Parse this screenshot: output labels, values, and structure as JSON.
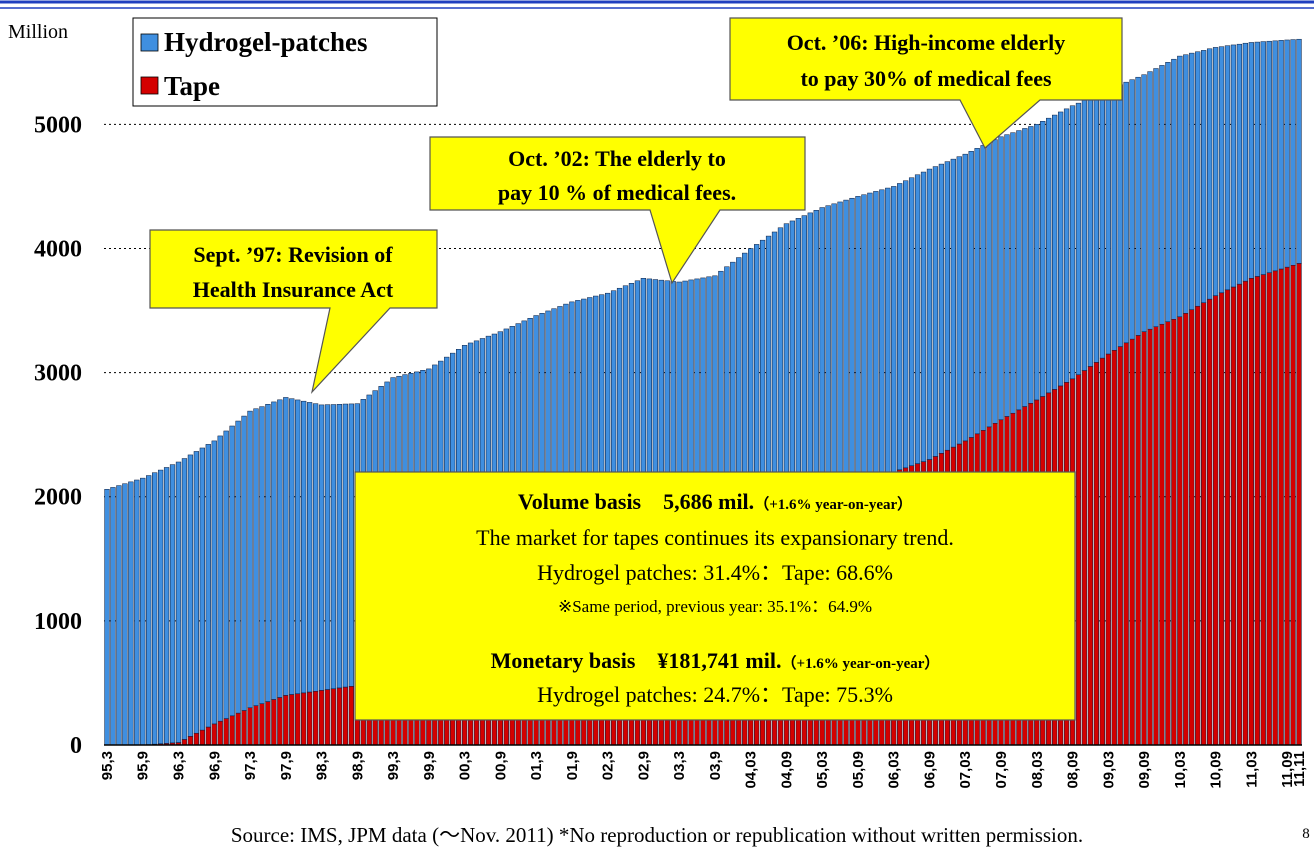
{
  "chart_data": {
    "type": "bar",
    "stacked": true,
    "y_unit_label": "Million",
    "ylim": [
      0,
      5720
    ],
    "yticks": [
      0,
      1000,
      2000,
      3000,
      4000,
      5000
    ],
    "grid": true,
    "categories": [
      "95,3",
      null,
      null,
      null,
      null,
      null,
      "95,9",
      null,
      null,
      null,
      null,
      null,
      "96,3",
      null,
      null,
      null,
      null,
      null,
      "96,9",
      null,
      null,
      null,
      null,
      null,
      "97,3",
      null,
      null,
      null,
      null,
      null,
      "97,9",
      null,
      null,
      null,
      null,
      null,
      "98,3",
      null,
      null,
      null,
      null,
      null,
      "98,9",
      null,
      null,
      null,
      null,
      null,
      "99,3",
      null,
      null,
      null,
      null,
      null,
      "99,9",
      null,
      null,
      null,
      null,
      null,
      "00,3",
      null,
      null,
      null,
      null,
      null,
      "00,9",
      null,
      null,
      null,
      null,
      null,
      "01,3",
      null,
      null,
      null,
      null,
      null,
      "01,9",
      null,
      null,
      null,
      null,
      null,
      "02,3",
      null,
      null,
      null,
      null,
      null,
      "02,9",
      null,
      null,
      null,
      null,
      null,
      "03,3",
      null,
      null,
      null,
      null,
      null,
      "03,9",
      null,
      null,
      null,
      null,
      null,
      "04,03",
      null,
      null,
      null,
      null,
      null,
      "04,09",
      null,
      null,
      null,
      null,
      null,
      "05,03",
      null,
      null,
      null,
      null,
      null,
      "05,09",
      null,
      null,
      null,
      null,
      null,
      "06,03",
      null,
      null,
      null,
      null,
      null,
      "06,09",
      null,
      null,
      null,
      null,
      null,
      "07,03",
      null,
      null,
      null,
      null,
      null,
      "07,09",
      null,
      null,
      null,
      null,
      null,
      "08,03",
      null,
      null,
      null,
      null,
      null,
      "08,09",
      null,
      null,
      null,
      null,
      null,
      "09,03",
      null,
      null,
      null,
      null,
      null,
      "09,09",
      null,
      null,
      null,
      null,
      null,
      "10,03",
      null,
      null,
      null,
      null,
      null,
      "10,09",
      null,
      null,
      null,
      null,
      null,
      "11,03",
      null,
      null,
      null,
      null,
      null,
      "11,09",
      null,
      "11,11"
    ],
    "series": [
      {
        "name": "Hydrogel-patches",
        "color": "#3f8fe0",
        "values": [
          2060,
          2075,
          2090,
          2105,
          2120,
          2135,
          2150,
          2168,
          2187,
          2205,
          2223,
          2242,
          2260,
          2263,
          2267,
          2270,
          2273,
          2277,
          2280,
          2298,
          2317,
          2335,
          2353,
          2372,
          2390,
          2392,
          2393,
          2395,
          2397,
          2398,
          2400,
          2383,
          2367,
          2350,
          2333,
          2317,
          2300,
          2295,
          2290,
          2285,
          2280,
          2275,
          2270,
          2298,
          2327,
          2355,
          2383,
          2412,
          2440,
          2438,
          2437,
          2435,
          2433,
          2432,
          2430,
          2445,
          2460,
          2475,
          2490,
          2505,
          2520,
          2522,
          2523,
          2525,
          2527,
          2528,
          2530,
          2535,
          2540,
          2545,
          2550,
          2555,
          2560,
          2558,
          2557,
          2555,
          2553,
          2552,
          2550,
          2540,
          2530,
          2520,
          2510,
          2500,
          2490,
          2490,
          2490,
          2490,
          2490,
          2490,
          2490,
          2463,
          2437,
          2410,
          2383,
          2357,
          2330,
          2313,
          2297,
          2280,
          2263,
          2247,
          2230,
          2242,
          2253,
          2265,
          2277,
          2288,
          2300,
          2313,
          2327,
          2340,
          2353,
          2367,
          2380,
          2380,
          2380,
          2380,
          2380,
          2380,
          2380,
          2373,
          2367,
          2360,
          2353,
          2347,
          2340,
          2333,
          2327,
          2320,
          2313,
          2307,
          2300,
          2307,
          2313,
          2320,
          2327,
          2333,
          2340,
          2335,
          2330,
          2325,
          2320,
          2315,
          2310,
          2305,
          2300,
          2295,
          2290,
          2285,
          2280,
          2270,
          2260,
          2250,
          2240,
          2230,
          2220,
          2217,
          2213,
          2210,
          2207,
          2203,
          2200,
          2188,
          2177,
          2165,
          2153,
          2142,
          2130,
          2120,
          2110,
          2100,
          2090,
          2080,
          2070,
          2075,
          2080,
          2085,
          2090,
          2095,
          2100,
          2083,
          2067,
          2050,
          2033,
          2017,
          2000,
          1983,
          1967,
          1950,
          1933,
          1917,
          1900,
          1888,
          1877,
          1865,
          1853,
          1842,
          1830,
          1818,
          1806
        ]
      },
      {
        "name": "Tape",
        "color": "#d40000",
        "values": [
          0,
          0,
          0,
          0,
          0,
          0,
          0,
          3,
          7,
          10,
          13,
          17,
          20,
          45,
          70,
          95,
          120,
          145,
          170,
          192,
          213,
          235,
          257,
          278,
          300,
          317,
          333,
          350,
          367,
          383,
          400,
          407,
          413,
          420,
          427,
          433,
          440,
          447,
          453,
          460,
          467,
          473,
          480,
          487,
          493,
          500,
          507,
          513,
          520,
          533,
          547,
          560,
          573,
          587,
          600,
          617,
          633,
          650,
          667,
          683,
          700,
          717,
          733,
          750,
          767,
          783,
          800,
          817,
          833,
          850,
          867,
          883,
          900,
          920,
          940,
          960,
          980,
          1000,
          1020,
          1042,
          1063,
          1085,
          1107,
          1128,
          1150,
          1170,
          1190,
          1210,
          1230,
          1250,
          1270,
          1292,
          1313,
          1335,
          1357,
          1378,
          1400,
          1425,
          1450,
          1475,
          1500,
          1525,
          1550,
          1575,
          1600,
          1625,
          1650,
          1675,
          1700,
          1720,
          1740,
          1760,
          1780,
          1800,
          1820,
          1842,
          1863,
          1885,
          1907,
          1928,
          1950,
          1972,
          1993,
          2015,
          2037,
          2058,
          2080,
          2100,
          2120,
          2140,
          2160,
          2180,
          2200,
          2217,
          2233,
          2250,
          2267,
          2283,
          2300,
          2325,
          2350,
          2375,
          2400,
          2425,
          2450,
          2478,
          2507,
          2535,
          2563,
          2592,
          2620,
          2647,
          2673,
          2700,
          2727,
          2753,
          2780,
          2808,
          2837,
          2865,
          2893,
          2922,
          2950,
          2983,
          3017,
          3050,
          3083,
          3117,
          3150,
          3180,
          3210,
          3240,
          3270,
          3300,
          3330,
          3350,
          3370,
          3390,
          3410,
          3430,
          3450,
          3478,
          3507,
          3535,
          3563,
          3592,
          3620,
          3643,
          3667,
          3690,
          3713,
          3737,
          3760,
          3775,
          3790,
          3805,
          3820,
          3835,
          3850,
          3865,
          3880
        ]
      }
    ],
    "annotations": [
      [
        "Sept. ’97: Revision of",
        "Health Insurance Act"
      ],
      [
        "Oct. ’02: The elderly to",
        "pay 10 % of medical fees."
      ],
      [
        "Oct. ’06: High-income elderly",
        "to pay 30% of medical fees"
      ]
    ],
    "summary": {
      "volume": "Volume basis　5,686 mil.",
      "volume_change": "（+1.6%  year-on-year）",
      "trend": "The market for tapes continues its expansionary trend.",
      "volume_share": "Hydrogel patches: 31.4%：Tape: 68.6%",
      "previous_share": "※Same period, previous year: 35.1%：64.9%",
      "monetary": "Monetary basis　¥181,741 mil.",
      "monetary_change": "（+1.6%  year-on-year）",
      "monetary_share": "Hydrogel patches: 24.7%：Tape: 75.3%"
    },
    "source": "Source: IMS, JPM data (～Nov. 2011) *No reproduction or republication without written permission.",
    "page_number": "8"
  }
}
